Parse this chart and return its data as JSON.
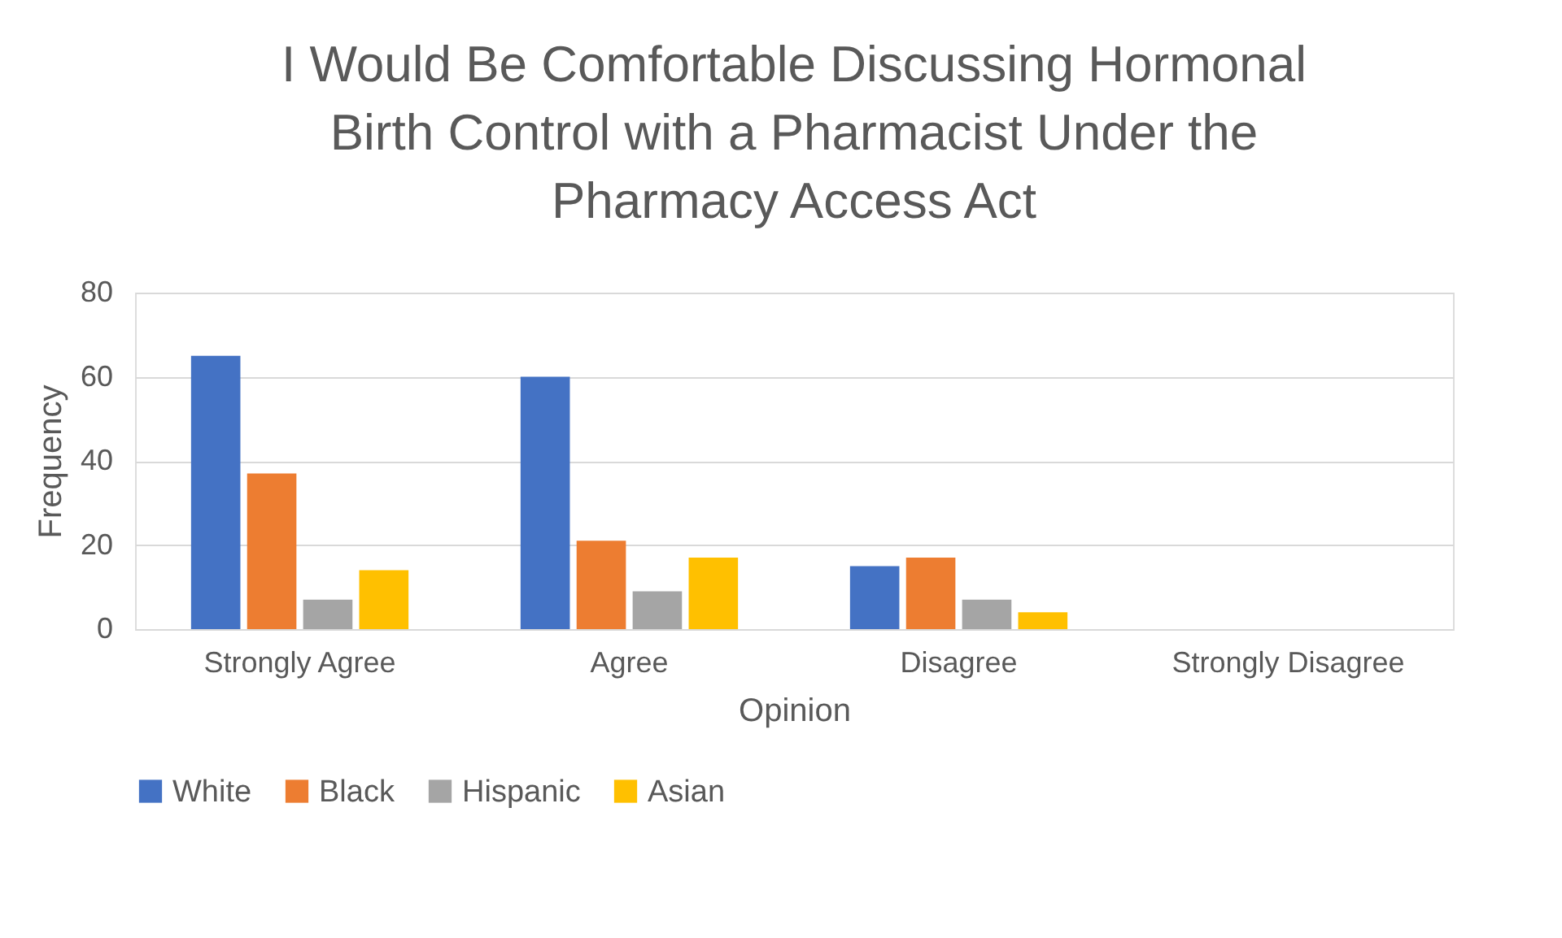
{
  "chart_data": {
    "type": "bar",
    "title": [
      "I Would Be Comfortable Discussing Hormonal",
      "Birth Control with a Pharmacist Under the",
      "Pharmacy Access Act"
    ],
    "xlabel": "Opinion",
    "ylabel": "Frequency",
    "categories": [
      "Strongly Agree",
      "Agree",
      "Disagree",
      "Strongly Disagree"
    ],
    "series": [
      {
        "name": "White",
        "color": "#4472c4",
        "values": [
          65,
          60,
          15,
          0
        ]
      },
      {
        "name": "Black",
        "color": "#ed7d31",
        "values": [
          37,
          21,
          17,
          0
        ]
      },
      {
        "name": "Hispanic",
        "color": "#a5a5a5",
        "values": [
          7,
          9,
          7,
          0
        ]
      },
      {
        "name": "Asian",
        "color": "#ffc000",
        "values": [
          14,
          17,
          4,
          0
        ]
      }
    ],
    "ylim": [
      0,
      80
    ],
    "yticks": [
      0,
      20,
      40,
      60,
      80
    ],
    "grid": "y",
    "legend": "bottom"
  }
}
